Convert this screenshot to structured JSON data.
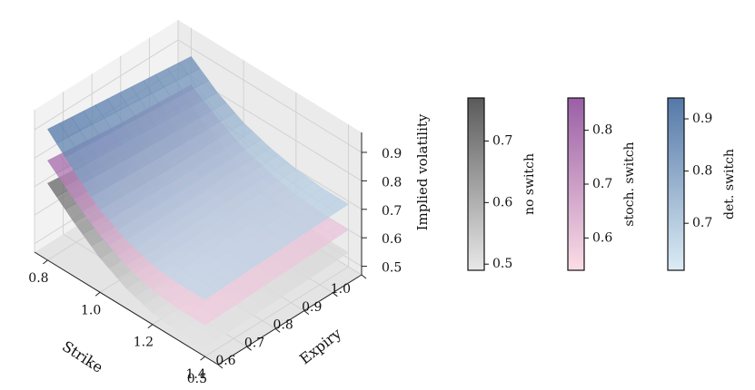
{
  "chart_data": {
    "type": "surface3d",
    "axes": {
      "x": {
        "label": "Strike",
        "ticks": [
          "0.8",
          "1.0",
          "1.2",
          "1.4"
        ],
        "range": [
          0.75,
          1.45
        ]
      },
      "y": {
        "label": "Expiry",
        "ticks": [
          "0.5",
          "0.6",
          "0.7",
          "0.8",
          "0.9",
          "1.0"
        ],
        "range": [
          0.5,
          1.0
        ]
      },
      "z": {
        "label": "Implied volatility",
        "ticks": [
          "0.5",
          "0.6",
          "0.7",
          "0.8",
          "0.9"
        ],
        "range": [
          0.47,
          0.97
        ]
      }
    },
    "strikes": [
      0.8,
      0.9,
      1.0,
      1.1,
      1.2,
      1.3,
      1.4
    ],
    "expiries": [
      0.5,
      0.75,
      1.0
    ],
    "series": [
      {
        "name": "no switch",
        "z": [
          [
            0.74,
            0.66,
            0.59,
            0.54,
            0.51,
            0.5,
            0.5
          ],
          [
            0.71,
            0.64,
            0.58,
            0.54,
            0.52,
            0.51,
            0.51
          ],
          [
            0.69,
            0.63,
            0.58,
            0.55,
            0.53,
            0.52,
            0.52
          ]
        ],
        "colorbar": {
          "ticks": [
            "0.5",
            "0.6",
            "0.7"
          ],
          "range": [
            0.49,
            0.77
          ],
          "colors": [
            "#e8e8e8",
            "#5a5a5a"
          ]
        }
      },
      {
        "name": "stoch. switch",
        "z": [
          [
            0.82,
            0.74,
            0.67,
            0.62,
            0.59,
            0.58,
            0.58
          ],
          [
            0.79,
            0.72,
            0.66,
            0.62,
            0.6,
            0.59,
            0.59
          ],
          [
            0.77,
            0.71,
            0.66,
            0.63,
            0.61,
            0.6,
            0.6
          ]
        ],
        "colorbar": {
          "ticks": [
            "0.6",
            "0.7",
            "0.8"
          ],
          "range": [
            0.54,
            0.86
          ],
          "colors": [
            "#fbdde6",
            "#9a5fa6"
          ]
        }
      },
      {
        "name": "det. switch",
        "z": [
          [
            0.93,
            0.84,
            0.76,
            0.71,
            0.68,
            0.67,
            0.67
          ],
          [
            0.9,
            0.82,
            0.75,
            0.71,
            0.69,
            0.68,
            0.68
          ],
          [
            0.87,
            0.8,
            0.75,
            0.72,
            0.7,
            0.69,
            0.69
          ]
        ],
        "colorbar": {
          "ticks": [
            "0.7",
            "0.8",
            "0.9"
          ],
          "range": [
            0.61,
            0.94
          ],
          "colors": [
            "#dcecf5",
            "#5478a8"
          ]
        }
      }
    ],
    "grid": true
  }
}
